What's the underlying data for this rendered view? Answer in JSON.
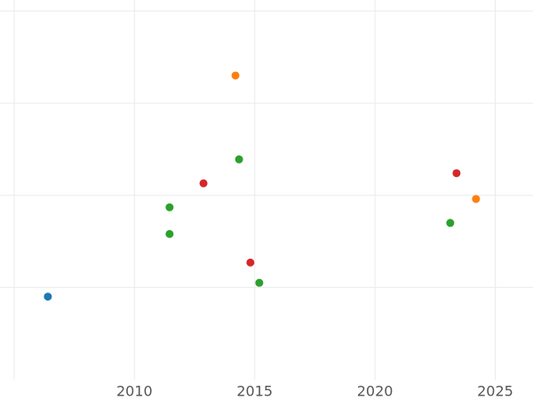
{
  "chart_data": {
    "type": "scatter",
    "xlim": [
      2004.41,
      2026.57
    ],
    "xticks": [
      {
        "value": 2005,
        "label": null
      },
      2010,
      2015,
      2020,
      2025
    ],
    "ylim": [
      0,
      4.12
    ],
    "yticks": [
      1,
      2,
      3,
      4
    ],
    "ytick_labels": false,
    "grid": true,
    "series": [
      {
        "color": "#1f77b4",
        "x": [
          2006.4
        ],
        "values": [
          0.9
        ]
      },
      {
        "color": "#ff7f0e",
        "x": [
          2014.2,
          2024.2
        ],
        "values": [
          3.3,
          1.96
        ]
      },
      {
        "color": "#2ca02c",
        "x": [
          2014.35,
          2011.46,
          2011.46,
          2015.19,
          2023.13
        ],
        "values": [
          2.39,
          1.87,
          1.58,
          1.05,
          1.7
        ]
      },
      {
        "color": "#d62728",
        "x": [
          2012.87,
          2014.82,
          2023.39
        ],
        "values": [
          2.13,
          1.27,
          2.24
        ]
      }
    ]
  }
}
